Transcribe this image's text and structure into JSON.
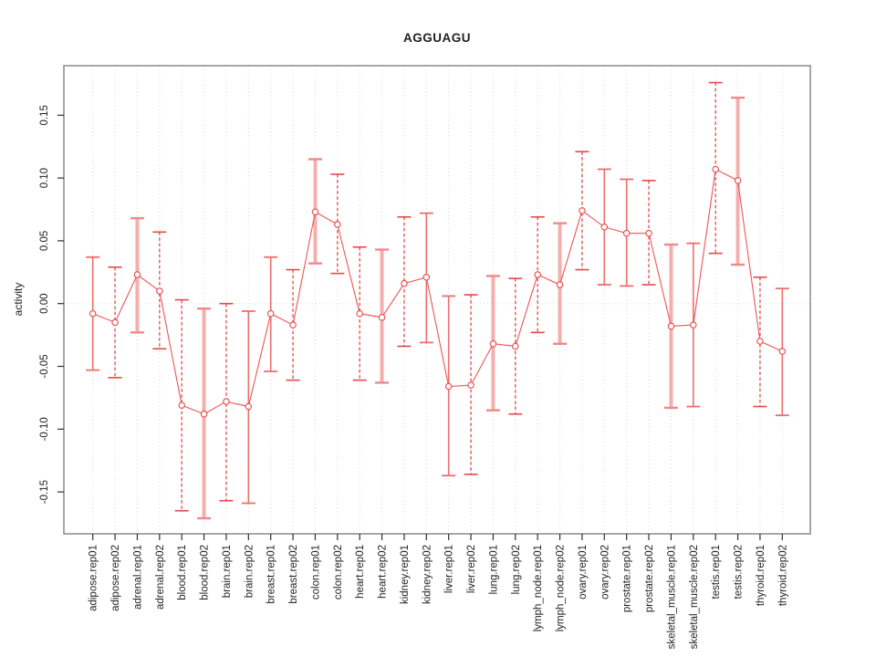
{
  "page": {
    "background": "#ffffff"
  },
  "chart_data": {
    "type": "scatter",
    "subtype": "points-with-error-bars",
    "title": "AGGUAGU",
    "xlabel": "",
    "ylabel": "activity",
    "legend": "none",
    "grid": {
      "vertical_dotted_per_category": true,
      "horizontal_dotted_zero_line": true
    },
    "ylim": [
      -0.185,
      0.19
    ],
    "yticks": [
      0.15,
      0.1,
      0.05,
      0.0,
      -0.05,
      -0.1,
      -0.15
    ],
    "ytick_labels": [
      "0.15",
      "0.10",
      "0.05",
      "0.00",
      "-0.05",
      "-0.10",
      "-0.15"
    ],
    "categories": [
      "adipose.rep01",
      "adipose.rep02",
      "adrenal.rep01",
      "adrenal.rep02",
      "blood.rep01",
      "blood.rep02",
      "brain.rep01",
      "brain.rep02",
      "breast.rep01",
      "breast.rep02",
      "colon.rep01",
      "colon.rep02",
      "heart.rep01",
      "heart.rep02",
      "kidney.rep01",
      "kidney.rep02",
      "liver.rep01",
      "liver.rep02",
      "lung.rep01",
      "lung.rep02",
      "lymph_node.rep01",
      "lymph_node.rep02",
      "ovary.rep01",
      "ovary.rep02",
      "prostate.rep01",
      "prostate.rep02",
      "skeletal_muscle.rep01",
      "skeletal_muscle.rep02",
      "testis.rep01",
      "testis.rep02",
      "thyroid.rep01",
      "thyroid.rep02"
    ],
    "series": [
      {
        "name": "activity",
        "values": [
          -0.008,
          -0.015,
          0.023,
          0.01,
          -0.081,
          -0.088,
          -0.078,
          -0.082,
          -0.008,
          -0.017,
          0.073,
          0.063,
          -0.008,
          -0.011,
          0.016,
          0.021,
          -0.066,
          -0.065,
          -0.032,
          -0.034,
          0.023,
          0.015,
          0.074,
          0.061,
          0.056,
          0.056,
          -0.018,
          -0.017,
          0.107,
          0.098,
          -0.03,
          -0.038
        ],
        "error_high": [
          0.037,
          0.029,
          0.068,
          0.057,
          0.003,
          -0.004,
          0.0,
          -0.006,
          0.037,
          0.027,
          0.115,
          0.103,
          0.045,
          0.043,
          0.069,
          0.072,
          0.006,
          0.007,
          0.022,
          0.02,
          0.069,
          0.064,
          0.121,
          0.107,
          0.099,
          0.098,
          0.047,
          0.048,
          0.176,
          0.164,
          0.021,
          0.012
        ],
        "error_low": [
          -0.053,
          -0.059,
          -0.023,
          -0.036,
          -0.165,
          -0.171,
          -0.157,
          -0.159,
          -0.054,
          -0.061,
          0.032,
          0.024,
          -0.061,
          -0.063,
          -0.034,
          -0.031,
          -0.137,
          -0.136,
          -0.085,
          -0.088,
          -0.023,
          -0.032,
          0.027,
          0.015,
          0.014,
          0.015,
          -0.083,
          -0.082,
          0.04,
          0.031,
          -0.082,
          -0.089
        ],
        "bar_styles": [
          "solid",
          "dashed",
          "thick",
          "dashed",
          "dashed",
          "thick",
          "dashed",
          "solid",
          "solid",
          "dashed",
          "thick",
          "dashed",
          "dashed",
          "thick",
          "dashed",
          "solid",
          "solid",
          "dashed",
          "thick",
          "dashed",
          "dashed",
          "thick",
          "dashed",
          "solid",
          "solid",
          "dashed",
          "thick",
          "solid",
          "dashed",
          "thick",
          "dashed",
          "solid"
        ]
      }
    ],
    "colors": {
      "point": "#e84848",
      "line": "#f05454",
      "bar_solid": "#ee6e6e",
      "bar_dashed": "#e24a4a",
      "bar_thick": "#f5aeae",
      "bar_thick_cap": "#f28888",
      "grid": "#d9d9d9",
      "zero_line": "#dcdcdc",
      "box": "#8a8a8a",
      "tick": "#2f2f2f",
      "text": "#1f1f1f"
    }
  }
}
